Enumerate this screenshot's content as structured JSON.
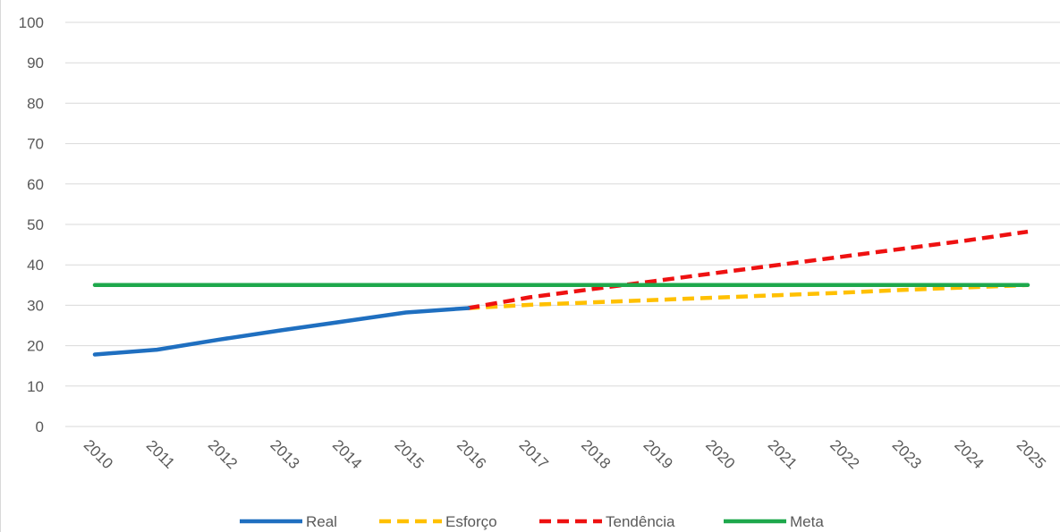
{
  "chart_data": {
    "type": "line",
    "title": "",
    "xlabel": "",
    "ylabel": "",
    "categories": [
      "2010",
      "2011",
      "2012",
      "2013",
      "2014",
      "2015",
      "2016",
      "2017",
      "2018",
      "2019",
      "2020",
      "2021",
      "2022",
      "2023",
      "2024",
      "2025"
    ],
    "ylim": [
      0,
      100
    ],
    "yticks": [
      0,
      10,
      20,
      30,
      40,
      50,
      60,
      70,
      80,
      90,
      100
    ],
    "grid": true,
    "legend_position": "bottom",
    "series": [
      {
        "name": "Real",
        "color": "#1f6fc0",
        "dash": "solid",
        "values": [
          17.8,
          19.0,
          21.5,
          23.8,
          26.0,
          28.2,
          29.3,
          null,
          null,
          null,
          null,
          null,
          null,
          null,
          null,
          null
        ]
      },
      {
        "name": "Esforço",
        "color": "#ffc000",
        "dash": "dashed",
        "values": [
          null,
          null,
          null,
          null,
          null,
          null,
          29.3,
          30.1,
          30.7,
          31.3,
          31.9,
          32.5,
          33.1,
          33.8,
          34.4,
          35.0
        ]
      },
      {
        "name": "Tendência",
        "color": "#ee1111",
        "dash": "dashed",
        "values": [
          null,
          null,
          null,
          null,
          null,
          null,
          29.3,
          32.0,
          34.0,
          36.0,
          38.0,
          40.0,
          42.0,
          44.0,
          46.0,
          48.2
        ]
      },
      {
        "name": "Meta",
        "color": "#1ea84c",
        "dash": "solid",
        "values": [
          35,
          35,
          35,
          35,
          35,
          35,
          35,
          35,
          35,
          35,
          35,
          35,
          35,
          35,
          35,
          35
        ]
      }
    ]
  }
}
